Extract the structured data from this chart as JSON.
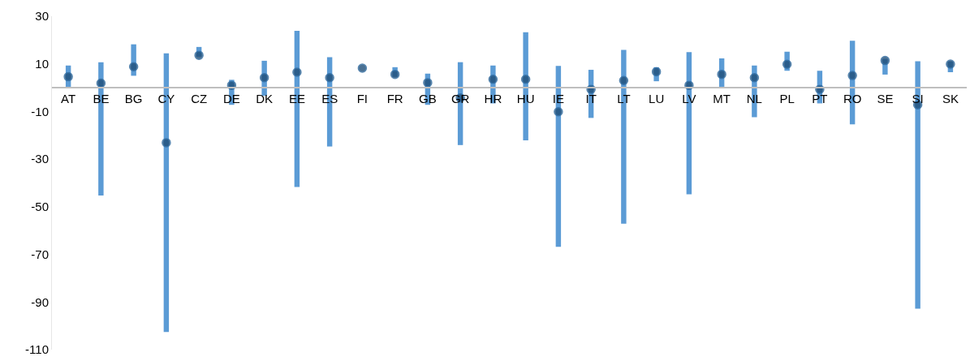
{
  "chart_data": {
    "type": "bar",
    "categories": [
      "AT",
      "BE",
      "BG",
      "CY",
      "CZ",
      "DE",
      "DK",
      "EE",
      "ES",
      "FI",
      "FR",
      "GB",
      "GR",
      "HR",
      "HU",
      "IE",
      "IT",
      "LT",
      "LU",
      "LV",
      "MT",
      "NL",
      "PL",
      "PT",
      "RO",
      "SE",
      "SI",
      "SK"
    ],
    "series": [
      {
        "type": "bar",
        "color": "#5b9bd5",
        "base": [
          0,
          -45.3,
          5.0,
          -102.6,
          13.0,
          -7.2,
          -3.4,
          -41.7,
          -24.7,
          null,
          4.5,
          -7.2,
          -24.1,
          -6.6,
          -22.1,
          -66.8,
          -12.7,
          -57.1,
          2.7,
          -44.8,
          0,
          -12.4,
          7.1,
          -6.6,
          -15.4,
          5.5,
          -92.8,
          6.5
        ],
        "values": [
          9.3,
          56.0,
          13.2,
          117.0,
          4.1,
          10.5,
          14.7,
          65.6,
          37.5,
          null,
          4.1,
          13.1,
          34.8,
          15.9,
          45.4,
          75.9,
          20.2,
          73.0,
          5.9,
          59.7,
          12.3,
          21.7,
          8.0,
          13.7,
          35.1,
          6.5,
          103.9,
          4.5
        ]
      },
      {
        "type": "scatter",
        "color": "#1f4e79",
        "marker": "circle",
        "values": [
          4.6,
          1.9,
          8.8,
          -23.1,
          13.6,
          1.0,
          4.2,
          6.5,
          4.2,
          8.2,
          5.6,
          2.1,
          -4.3,
          3.5,
          3.5,
          -10.1,
          -0.7,
          3.0,
          6.7,
          1.0,
          5.6,
          4.2,
          9.8,
          -0.7,
          5.1,
          11.4,
          -7.2,
          9.9
        ]
      }
    ],
    "ylim": [
      -110,
      30
    ],
    "yticks": [
      -110,
      -90,
      -70,
      -50,
      -30,
      -10,
      10,
      30
    ]
  }
}
